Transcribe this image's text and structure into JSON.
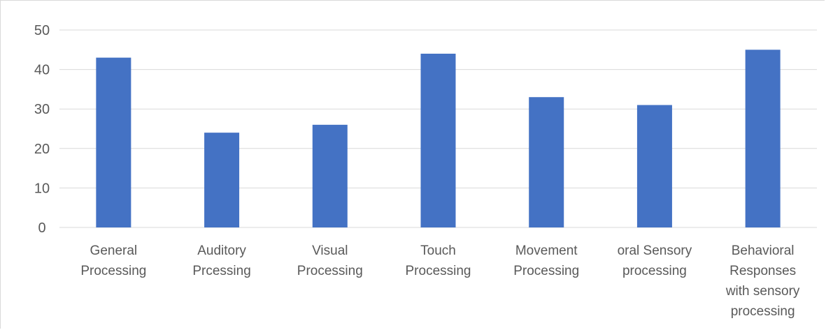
{
  "chart_data": {
    "type": "bar",
    "categories": [
      [
        "General",
        "Processing"
      ],
      [
        "Auditory",
        "Prcessing"
      ],
      [
        "Visual",
        "Processing"
      ],
      [
        "Touch",
        "Processing"
      ],
      [
        "Movement",
        "Processing"
      ],
      [
        "oral Sensory",
        "processing"
      ],
      [
        "Behavioral",
        "Responses",
        "with sensory",
        "processing"
      ]
    ],
    "values": [
      43,
      24,
      26,
      44,
      33,
      31,
      45
    ],
    "ylim": [
      0,
      50
    ],
    "yticks": [
      "0",
      "10",
      "20",
      "30",
      "40",
      "50"
    ],
    "title": "",
    "xlabel": "",
    "ylabel": "",
    "grid": true,
    "legend": "none",
    "bar_color": "#4472C4"
  }
}
